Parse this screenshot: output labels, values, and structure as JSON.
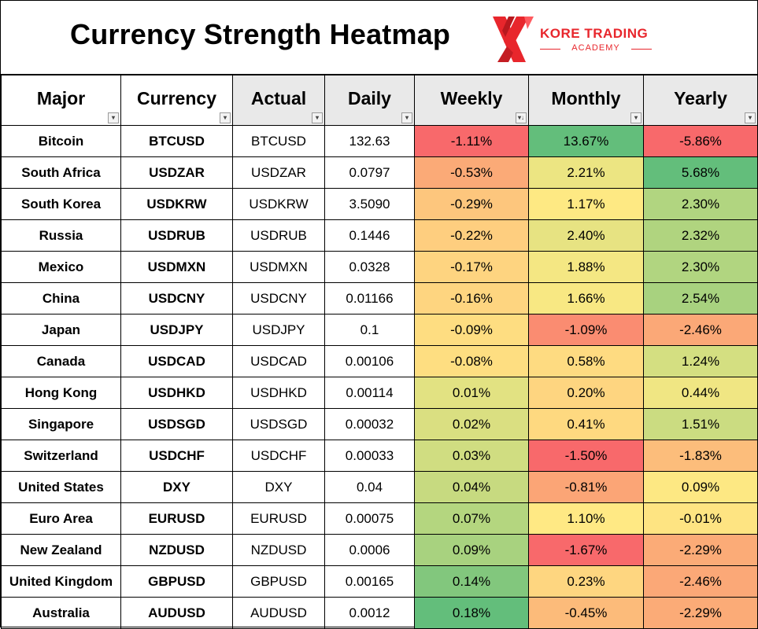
{
  "title": "Currency Strength Heatmap",
  "logo": {
    "line1": "KORE TRADING",
    "line2": "ACADEMY",
    "brand_color": "#e8262c",
    "icon": "kore-x-logo-icon"
  },
  "columns": [
    {
      "key": "major",
      "label": "Major"
    },
    {
      "key": "currency",
      "label": "Currency"
    },
    {
      "key": "actual",
      "label": "Actual"
    },
    {
      "key": "daily",
      "label": "Daily"
    },
    {
      "key": "weekly",
      "label": "Weekly"
    },
    {
      "key": "monthly",
      "label": "Monthly"
    },
    {
      "key": "yearly",
      "label": "Yearly"
    }
  ],
  "header_icons": {
    "filter": "filter-dropdown-icon",
    "sorted": "sort-descending-icon"
  },
  "rows": [
    {
      "major": "Bitcoin",
      "currency": "BTCUSD",
      "actual": "BTCUSD",
      "daily": "132.63",
      "weekly": "-1.11%",
      "monthly": "13.67%",
      "yearly": "-5.86%",
      "c": [
        "#f8696b",
        "#63be7b",
        "#f8696b"
      ]
    },
    {
      "major": "South Africa",
      "currency": "USDZAR",
      "actual": "USDZAR",
      "daily": "0.0797",
      "weekly": "-0.53%",
      "monthly": "2.21%",
      "yearly": "5.68%",
      "c": [
        "#fbaa77",
        "#ece582",
        "#63be7b"
      ]
    },
    {
      "major": "South Korea",
      "currency": "USDKRW",
      "actual": "USDKRW",
      "daily": "3.5090",
      "weekly": "-0.29%",
      "monthly": "1.17%",
      "yearly": "2.30%",
      "c": [
        "#fdc67d",
        "#fee983",
        "#b1d580"
      ]
    },
    {
      "major": "Russia",
      "currency": "USDRUB",
      "actual": "USDRUB",
      "daily": "0.1446",
      "weekly": "-0.22%",
      "monthly": "2.40%",
      "yearly": "2.32%",
      "c": [
        "#fece7f",
        "#e7e382",
        "#b0d47f"
      ]
    },
    {
      "major": "Mexico",
      "currency": "USDMXN",
      "actual": "USDMXN",
      "daily": "0.0328",
      "weekly": "-0.17%",
      "monthly": "1.88%",
      "yearly": "2.30%",
      "c": [
        "#fed480",
        "#f4e783",
        "#b1d580"
      ]
    },
    {
      "major": "China",
      "currency": "USDCNY",
      "actual": "USDCNY",
      "daily": "0.01166",
      "weekly": "-0.16%",
      "monthly": "1.66%",
      "yearly": "2.54%",
      "c": [
        "#fed580",
        "#f8e883",
        "#a8d27f"
      ]
    },
    {
      "major": "Japan",
      "currency": "USDJPY",
      "actual": "USDJPY",
      "daily": "0.1",
      "weekly": "-0.09%",
      "monthly": "-1.09%",
      "yearly": "-2.46%",
      "c": [
        "#fedd81",
        "#fa8c71",
        "#fba877"
      ]
    },
    {
      "major": "Canada",
      "currency": "USDCAD",
      "actual": "USDCAD",
      "daily": "0.00106",
      "weekly": "-0.08%",
      "monthly": "0.58%",
      "yearly": "1.24%",
      "c": [
        "#fede81",
        "#fedb81",
        "#d4df81"
      ]
    },
    {
      "major": "Hong Kong",
      "currency": "USDHKD",
      "actual": "USDHKD",
      "daily": "0.00114",
      "weekly": "0.01%",
      "monthly": "0.20%",
      "yearly": "0.44%",
      "c": [
        "#e2e282",
        "#fed580",
        "#f0e683"
      ]
    },
    {
      "major": "Singapore",
      "currency": "USDSGD",
      "actual": "USDSGD",
      "daily": "0.00032",
      "weekly": "0.02%",
      "monthly": "0.41%",
      "yearly": "1.51%",
      "c": [
        "#dadf81",
        "#fed980",
        "#cbdc81"
      ]
    },
    {
      "major": "Switzerland",
      "currency": "USDCHF",
      "actual": "USDCHF",
      "daily": "0.00033",
      "weekly": "0.03%",
      "monthly": "-1.50%",
      "yearly": "-1.83%",
      "c": [
        "#d0dd81",
        "#f8696b",
        "#fcbd7b"
      ]
    },
    {
      "major": "United States",
      "currency": "DXY",
      "actual": "DXY",
      "daily": "0.04",
      "weekly": "0.04%",
      "monthly": "-0.81%",
      "yearly": "0.09%",
      "c": [
        "#c7da80",
        "#fba576",
        "#fde883"
      ]
    },
    {
      "major": "Euro Area",
      "currency": "EURUSD",
      "actual": "EURUSD",
      "daily": "0.00075",
      "weekly": "0.07%",
      "monthly": "1.10%",
      "yearly": "-0.01%",
      "c": [
        "#b4d67f",
        "#ffe984",
        "#fee482"
      ]
    },
    {
      "major": "New Zealand",
      "currency": "NZDUSD",
      "actual": "NZDUSD",
      "daily": "0.0006",
      "weekly": "0.09%",
      "monthly": "-1.67%",
      "yearly": "-2.29%",
      "c": [
        "#a8d27f",
        "#f8696b",
        "#fbab77"
      ]
    },
    {
      "major": "United Kingdom",
      "currency": "GBPUSD",
      "actual": "GBPUSD",
      "daily": "0.00165",
      "weekly": "0.14%",
      "monthly": "0.23%",
      "yearly": "-2.46%",
      "c": [
        "#82c77d",
        "#fed680",
        "#fba877"
      ]
    },
    {
      "major": "Australia",
      "currency": "AUDUSD",
      "actual": "AUDUSD",
      "daily": "0.0012",
      "weekly": "0.18%",
      "monthly": "-0.45%",
      "yearly": "-2.29%",
      "c": [
        "#63be7b",
        "#fcbb7a",
        "#fbab77"
      ]
    }
  ]
}
